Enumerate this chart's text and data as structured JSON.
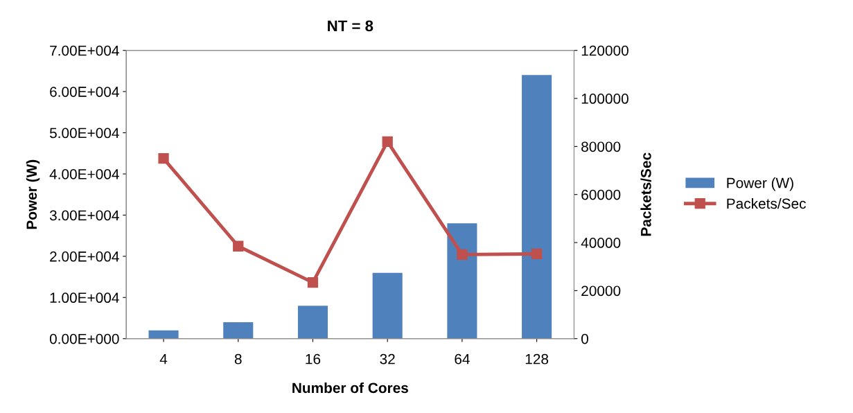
{
  "chart_data": {
    "type": "bar",
    "title": "NT = 8",
    "xlabel": "Number of Cores",
    "ylabel": "Power (W)",
    "y2label": "Packets/Sec",
    "categories": [
      "4",
      "8",
      "16",
      "32",
      "64",
      "128"
    ],
    "ylim": [
      0,
      70000
    ],
    "yticks": [
      {
        "value": 0,
        "label": "0.00E+000"
      },
      {
        "value": 10000,
        "label": "1.00E+004"
      },
      {
        "value": 20000,
        "label": "2.00E+004"
      },
      {
        "value": 30000,
        "label": "3.00E+004"
      },
      {
        "value": 40000,
        "label": "4.00E+004"
      },
      {
        "value": 50000,
        "label": "5.00E+004"
      },
      {
        "value": 60000,
        "label": "6.00E+004"
      },
      {
        "value": 70000,
        "label": "7.00E+004"
      }
    ],
    "y2lim": [
      0,
      120000
    ],
    "y2ticks": [
      0,
      20000,
      40000,
      60000,
      80000,
      100000,
      120000
    ],
    "legend": "right",
    "grid": false,
    "series": [
      {
        "name": "Power (W)",
        "color": "#4f81bd",
        "values": [
          2000,
          4000,
          8000,
          16000,
          28000,
          64000
        ]
      },
      {
        "name": "Packets/Sec",
        "type": "line",
        "axis": "y2",
        "color": "#c0504d",
        "marker": "square",
        "values": [
          75000,
          38500,
          23400,
          82000,
          35000,
          35300
        ]
      }
    ]
  }
}
